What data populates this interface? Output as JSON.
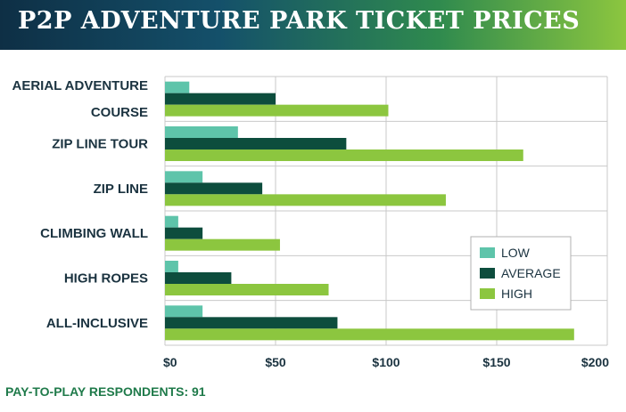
{
  "title": "P2P ADVENTURE PARK TICKET PRICES",
  "footer": "PAY-TO-PLAY RESPONDENTS: 91",
  "colors": {
    "low": "#5ec4aa",
    "average": "#0d4d3d",
    "high": "#8cc63f",
    "grid": "#c9c9c9",
    "text": "#1b3340"
  },
  "chart_data": {
    "type": "bar",
    "orientation": "horizontal",
    "categories": [
      [
        "AERIAL ADVENTURE",
        "COURSE"
      ],
      [
        "ZIP LINE TOUR"
      ],
      [
        "ZIP LINE"
      ],
      [
        "CLIMBING WALL"
      ],
      [
        "HIGH ROPES"
      ],
      [
        "ALL-INCLUSIVE"
      ]
    ],
    "series": [
      {
        "name": "LOW",
        "values": [
          11,
          33,
          17,
          6,
          6,
          17
        ]
      },
      {
        "name": "AVERAGE",
        "values": [
          50,
          82,
          44,
          17,
          30,
          78
        ]
      },
      {
        "name": "HIGH",
        "values": [
          101,
          162,
          127,
          52,
          74,
          185
        ]
      }
    ],
    "xlim": [
      0,
      200
    ],
    "xticks": [
      0,
      50,
      100,
      150,
      200
    ],
    "xtick_labels": [
      "$0",
      "$50",
      "$100",
      "$150",
      "$200"
    ],
    "grid": true,
    "legend_position": "lower-right"
  }
}
